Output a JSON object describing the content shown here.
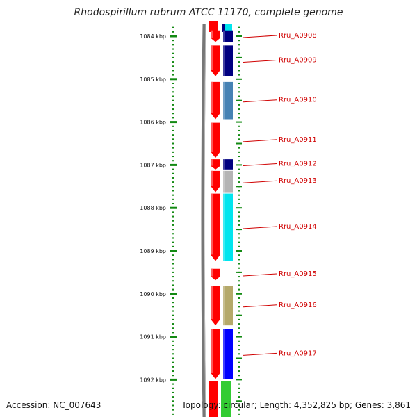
{
  "title": "Rhodospirillum rubrum ATCC 11170, complete genome",
  "footer": {
    "accession": "Accession: NC_007643",
    "topology": "Topology: circular; Length: 4,352,825 bp; Genes: 3,861"
  },
  "colors": {
    "ruler": "#138a13",
    "backbone": "#777777",
    "forward_strand": "#ff0000",
    "label": "#d00000"
  },
  "ruler_labels": [
    {
      "kbp": 1084,
      "label": "1084 kbp"
    },
    {
      "kbp": 1085,
      "label": "1085 kbp"
    },
    {
      "kbp": 1086,
      "label": "1086 kbp"
    },
    {
      "kbp": 1087,
      "label": "1087 kbp"
    },
    {
      "kbp": 1088,
      "label": "1088 kbp"
    },
    {
      "kbp": 1089,
      "label": "1089 kbp"
    },
    {
      "kbp": 1090,
      "label": "1090 kbp"
    },
    {
      "kbp": 1091,
      "label": "1091 kbp"
    },
    {
      "kbp": 1092,
      "label": "1092 kbp"
    }
  ],
  "genes": [
    {
      "name": "Rru_A0908",
      "start": 1083.85,
      "end": 1084.15,
      "color": "#000080"
    },
    {
      "name": "Rru_A0909",
      "start": 1084.2,
      "end": 1084.95,
      "color": "#000080"
    },
    {
      "name": "Rru_A0910",
      "start": 1085.05,
      "end": 1085.95,
      "color": "#4682b4"
    },
    {
      "name": "Rru_A0911",
      "start": 1086.0,
      "end": 1086.85,
      "color": null
    },
    {
      "name": "Rru_A0912",
      "start": 1086.85,
      "end": 1087.12,
      "color": "#000080"
    },
    {
      "name": "Rru_A0913",
      "start": 1087.12,
      "end": 1087.65,
      "color": "#b4b4b4"
    },
    {
      "name": "Rru_A0914",
      "start": 1087.65,
      "end": 1089.25,
      "color": "#00e5ee"
    },
    {
      "name": "Rru_A0915",
      "start": 1089.4,
      "end": 1089.7,
      "color": null
    },
    {
      "name": "Rru_A0916",
      "start": 1089.8,
      "end": 1090.75,
      "color": "#b5a96a"
    },
    {
      "name": "Rru_A0917",
      "start": 1090.8,
      "end": 1092.0,
      "color": "#0000ff"
    }
  ]
}
